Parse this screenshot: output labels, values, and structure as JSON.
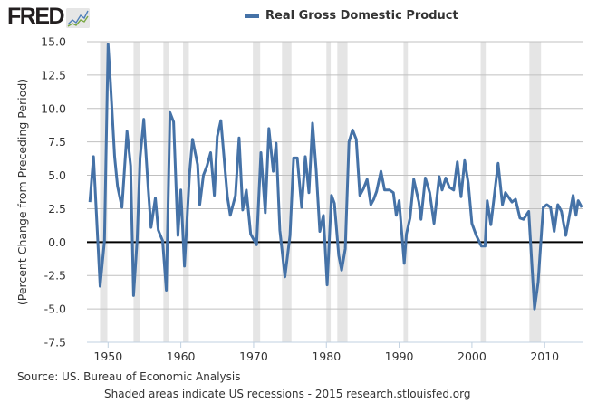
{
  "header": {
    "logo_text": "FRED",
    "logo_icon": "chart-line-icon"
  },
  "footer": {
    "source": "Source: US. Bureau of Economic Analysis",
    "note": "Shaded areas indicate US recessions - 2015 research.stlouisfed.org"
  },
  "chart_data": {
    "type": "line",
    "title": "",
    "legend": [
      "Real Gross Domestic Product"
    ],
    "legend_position": "top-center",
    "xlabel": "",
    "ylabel": "(Percent Change from Preceding Period)",
    "xlim": [
      1947.1,
      2015.2
    ],
    "ylim": [
      -7.5,
      15.0
    ],
    "yticks": [
      -7.5,
      -5.0,
      -2.5,
      0.0,
      2.5,
      5.0,
      7.5,
      10.0,
      12.5,
      15.0
    ],
    "ytick_labels": [
      "-7.5",
      "-5.0",
      "-2.5",
      "0.0",
      "2.5",
      "5.0",
      "7.5",
      "10.0",
      "12.5",
      "15.0"
    ],
    "xticks": [
      1950,
      1960,
      1970,
      1980,
      1990,
      2000,
      2010
    ],
    "xtick_labels": [
      "1950",
      "1960",
      "1970",
      "1980",
      "1990",
      "2000",
      "2010"
    ],
    "grid": true,
    "zero_line": true,
    "series_color": "#4572a7",
    "recessions": [
      [
        1948.9,
        1949.9
      ],
      [
        1953.5,
        1954.4
      ],
      [
        1957.6,
        1958.4
      ],
      [
        1960.3,
        1961.1
      ],
      [
        1969.9,
        1970.9
      ],
      [
        1973.9,
        1975.2
      ],
      [
        1980.0,
        1980.6
      ],
      [
        1981.5,
        1982.9
      ],
      [
        1990.6,
        1991.2
      ],
      [
        2001.2,
        2001.9
      ],
      [
        2007.9,
        2009.5
      ]
    ],
    "series": [
      {
        "name": "Real Gross Domestic Product",
        "x": [
          1947.5,
          1948.0,
          1948.9,
          1949.5,
          1950.0,
          1950.3,
          1950.9,
          1951.3,
          1951.9,
          1952.6,
          1953.1,
          1953.5,
          1954.0,
          1954.4,
          1954.9,
          1955.5,
          1955.9,
          1956.5,
          1956.9,
          1957.5,
          1958.0,
          1958.5,
          1959.0,
          1959.6,
          1960.0,
          1960.5,
          1961.2,
          1961.6,
          1962.3,
          1962.6,
          1963.1,
          1963.6,
          1964.1,
          1964.6,
          1965.0,
          1965.5,
          1966.4,
          1966.8,
          1967.5,
          1968.0,
          1968.5,
          1969.0,
          1969.6,
          1970.4,
          1971.0,
          1971.6,
          1972.1,
          1972.7,
          1973.1,
          1973.6,
          1974.3,
          1975.0,
          1975.5,
          1976.0,
          1976.6,
          1977.1,
          1977.6,
          1978.1,
          1978.6,
          1979.1,
          1979.6,
          1980.1,
          1980.7,
          1981.1,
          1981.7,
          1982.1,
          1982.6,
          1983.1,
          1983.6,
          1984.1,
          1984.6,
          1985.1,
          1985.6,
          1986.1,
          1986.5,
          1986.9,
          1987.5,
          1988.0,
          1988.7,
          1989.2,
          1989.6,
          1990.0,
          1990.7,
          1991.0,
          1991.5,
          1992.0,
          1992.7,
          1993.0,
          1993.6,
          1994.2,
          1994.8,
          1995.5,
          1995.9,
          1996.4,
          1996.9,
          1997.5,
          1998.0,
          1998.5,
          1999.0,
          1999.5,
          2000.0,
          2000.6,
          2001.3,
          2001.8,
          2002.1,
          2002.6,
          2003.6,
          2004.2,
          2004.6,
          2005.5,
          2006.0,
          2006.6,
          2007.1,
          2007.8,
          2008.6,
          2009.1,
          2009.8,
          2010.3,
          2010.8,
          2011.3,
          2011.8,
          2012.3,
          2012.9,
          2013.9,
          2014.3,
          2014.6,
          2015.1
        ],
        "values": [
          3.0,
          6.4,
          -3.3,
          0.1,
          14.8,
          12.2,
          6.4,
          4.2,
          2.6,
          8.3,
          5.7,
          -4.0,
          0.2,
          6.3,
          9.2,
          4.1,
          1.1,
          3.3,
          0.9,
          0.1,
          -3.6,
          9.7,
          9.0,
          0.5,
          3.9,
          -1.8,
          5.2,
          7.7,
          5.8,
          2.8,
          5.0,
          5.7,
          6.7,
          3.5,
          7.9,
          9.1,
          3.4,
          2.0,
          3.5,
          7.8,
          2.4,
          3.9,
          0.6,
          -0.2,
          6.7,
          2.2,
          8.5,
          5.3,
          7.4,
          0.9,
          -2.6,
          0.5,
          6.3,
          6.3,
          2.6,
          6.4,
          3.7,
          8.9,
          5.4,
          0.8,
          2.0,
          -3.2,
          3.5,
          2.9,
          -1.0,
          -2.1,
          -0.5,
          7.5,
          8.4,
          7.7,
          3.5,
          4.0,
          4.7,
          2.8,
          3.2,
          3.8,
          5.3,
          3.9,
          3.9,
          3.7,
          2.0,
          3.1,
          -1.6,
          0.6,
          1.8,
          4.7,
          3.0,
          1.7,
          4.8,
          3.7,
          1.4,
          4.9,
          3.9,
          4.8,
          4.1,
          3.9,
          6.0,
          3.4,
          6.1,
          4.4,
          1.4,
          0.5,
          -0.3,
          -0.3,
          3.1,
          1.3,
          5.9,
          2.8,
          3.7,
          3.0,
          3.2,
          1.8,
          1.7,
          2.3,
          -5.0,
          -3.0,
          2.6,
          2.8,
          2.6,
          0.8,
          2.8,
          2.3,
          0.5,
          3.5,
          2.0,
          3.1,
          2.6
        ]
      }
    ]
  }
}
